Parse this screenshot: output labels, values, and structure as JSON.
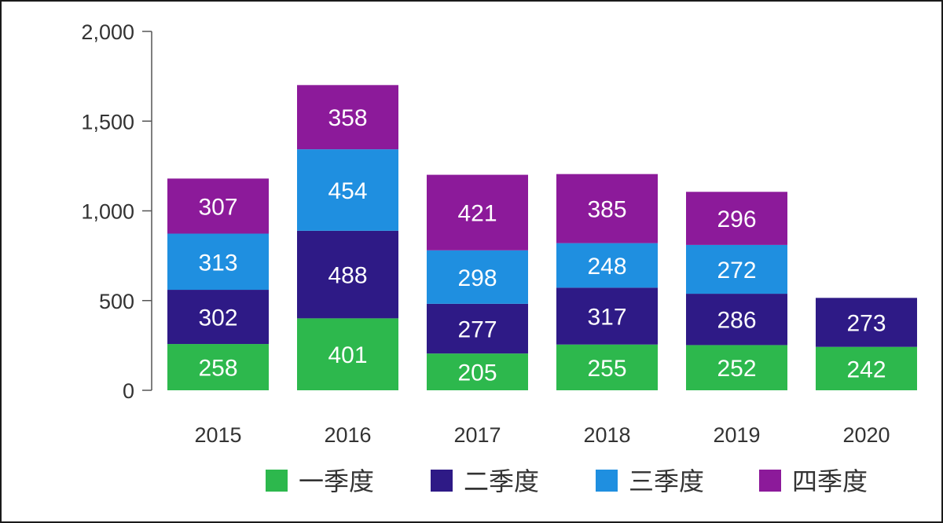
{
  "chart_data": {
    "type": "bar",
    "stacked": true,
    "title": "",
    "xlabel": "",
    "ylabel": "",
    "ylim": [
      0,
      2000
    ],
    "yticks": [
      0,
      500,
      1000,
      1500,
      2000
    ],
    "ytick_labels": [
      "0",
      "500",
      "1,000",
      "1,500",
      "2,000"
    ],
    "categories": [
      "2015",
      "2016",
      "2017",
      "2018",
      "2019",
      "2020"
    ],
    "grid": false,
    "legend_position": "bottom",
    "series": [
      {
        "name": "一季度",
        "color": "#2db84d",
        "values": [
          258,
          401,
          205,
          255,
          252,
          242
        ]
      },
      {
        "name": "二季度",
        "color": "#2e1a86",
        "values": [
          302,
          488,
          277,
          317,
          286,
          273
        ]
      },
      {
        "name": "三季度",
        "color": "#1f8fe0",
        "values": [
          313,
          454,
          298,
          248,
          272,
          null
        ]
      },
      {
        "name": "四季度",
        "color": "#8c1a9a",
        "values": [
          307,
          358,
          421,
          385,
          296,
          null
        ]
      }
    ]
  }
}
